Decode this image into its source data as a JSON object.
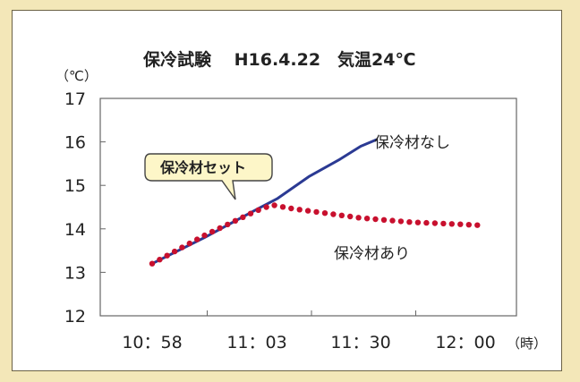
{
  "chart_data": {
    "type": "line",
    "title": "保冷試験　 H16.4.22　気温24℃",
    "y_unit": "（℃）",
    "x_unit": "（時）",
    "ylim": [
      12,
      17
    ],
    "y_ticks": [
      "17",
      "16",
      "15",
      "14",
      "13",
      "12"
    ],
    "x_ticks": [
      "10：58",
      "11：03",
      "11：30",
      "12：00"
    ],
    "grid": false,
    "series": [
      {
        "name": "保冷材なし",
        "style": "solid",
        "color": "#2b3a93",
        "points": [
          [
            0.0,
            13.2
          ],
          [
            0.5,
            13.8
          ],
          [
            1.0,
            14.45
          ],
          [
            1.2,
            14.7
          ],
          [
            1.5,
            15.2
          ],
          [
            1.8,
            15.6
          ],
          [
            2.0,
            15.9
          ],
          [
            2.15,
            16.05
          ]
        ]
      },
      {
        "name": "保冷材あり",
        "style": "dotted",
        "color": "#c8102e",
        "points": [
          [
            0.0,
            13.2
          ],
          [
            0.5,
            13.85
          ],
          [
            1.0,
            14.42
          ],
          [
            1.15,
            14.55
          ],
          [
            1.3,
            14.48
          ],
          [
            1.6,
            14.38
          ],
          [
            2.0,
            14.25
          ],
          [
            2.5,
            14.15
          ],
          [
            3.0,
            14.1
          ],
          [
            3.15,
            14.08
          ]
        ]
      }
    ],
    "annotation": "保冷材セット",
    "x_ticks_positions_in_data_units": [
      0,
      1,
      2,
      3
    ]
  },
  "colors": {
    "background": "#f3e7b8",
    "callout_fill": "#fdf6c8",
    "callout_border": "#444444"
  }
}
